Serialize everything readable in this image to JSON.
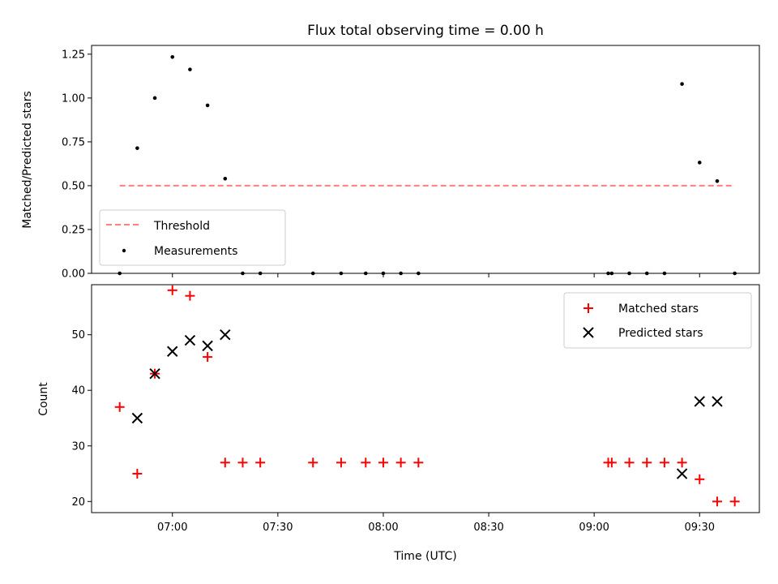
{
  "title": "Flux total observing time = 0.00 h",
  "chart_data": [
    {
      "type": "scatter",
      "ylabel": "Matched/Predicted stars",
      "ylim": [
        0,
        1.3
      ],
      "yticks": [
        "0.00",
        "0.25",
        "0.50",
        "0.75",
        "1.00",
        "1.25"
      ],
      "threshold": {
        "name": "Threshold",
        "y": 0.5,
        "x_range": [
          "06:45",
          "09:40"
        ],
        "color": "#ff7f7f"
      },
      "series": [
        {
          "name": "Measurements",
          "color": "#000000",
          "points": [
            [
              "06:45",
              0.0
            ],
            [
              "06:50",
              0.714
            ],
            [
              "06:55",
              1.0
            ],
            [
              "07:00",
              1.234
            ],
            [
              "07:05",
              1.163
            ],
            [
              "07:10",
              0.958
            ],
            [
              "07:15",
              0.54
            ],
            [
              "07:20",
              0.0
            ],
            [
              "07:25",
              0.0
            ],
            [
              "07:40",
              0.0
            ],
            [
              "07:48",
              0.0
            ],
            [
              "07:55",
              0.0
            ],
            [
              "08:00",
              0.0
            ],
            [
              "08:05",
              0.0
            ],
            [
              "08:10",
              0.0
            ],
            [
              "09:04",
              0.0
            ],
            [
              "09:05",
              0.0
            ],
            [
              "09:10",
              0.0
            ],
            [
              "09:15",
              0.0
            ],
            [
              "09:20",
              0.0
            ],
            [
              "09:25",
              1.08
            ],
            [
              "09:30",
              0.632
            ],
            [
              "09:35",
              0.526
            ],
            [
              "09:40",
              0.0
            ]
          ]
        }
      ],
      "legend_loc": "lower-left"
    },
    {
      "type": "scatter",
      "xlabel": "Time (UTC)",
      "ylabel": "Count",
      "ylim": [
        18,
        59
      ],
      "yticks": [
        "20",
        "30",
        "40",
        "50"
      ],
      "xticks": [
        "07:00",
        "07:30",
        "08:00",
        "08:30",
        "09:00",
        "09:30"
      ],
      "xlim": [
        "06:37",
        "09:47"
      ],
      "series": [
        {
          "name": "Matched stars",
          "marker": "plus",
          "color": "#ff0000",
          "points": [
            [
              "06:45",
              37
            ],
            [
              "06:50",
              25
            ],
            [
              "06:55",
              43
            ],
            [
              "07:00",
              58
            ],
            [
              "07:05",
              57
            ],
            [
              "07:10",
              46
            ],
            [
              "07:15",
              27
            ],
            [
              "07:20",
              27
            ],
            [
              "07:25",
              27
            ],
            [
              "07:40",
              27
            ],
            [
              "07:48",
              27
            ],
            [
              "07:55",
              27
            ],
            [
              "08:00",
              27
            ],
            [
              "08:05",
              27
            ],
            [
              "08:10",
              27
            ],
            [
              "09:04",
              27
            ],
            [
              "09:05",
              27
            ],
            [
              "09:10",
              27
            ],
            [
              "09:15",
              27
            ],
            [
              "09:20",
              27
            ],
            [
              "09:25",
              27
            ],
            [
              "09:30",
              24
            ],
            [
              "09:35",
              20
            ],
            [
              "09:40",
              20
            ]
          ]
        },
        {
          "name": "Predicted stars",
          "marker": "x",
          "color": "#000000",
          "points": [
            [
              "06:50",
              35
            ],
            [
              "06:55",
              43
            ],
            [
              "07:00",
              47
            ],
            [
              "07:05",
              49
            ],
            [
              "07:10",
              48
            ],
            [
              "07:15",
              50
            ],
            [
              "09:25",
              25
            ],
            [
              "09:30",
              38
            ],
            [
              "09:35",
              38
            ]
          ]
        }
      ],
      "legend_loc": "upper-right"
    }
  ]
}
